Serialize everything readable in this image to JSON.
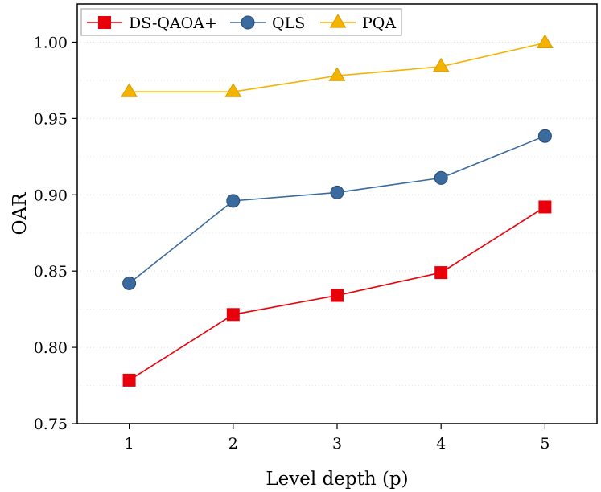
{
  "chart_data": {
    "type": "line",
    "title": "",
    "xlabel": "Level depth (p)",
    "ylabel": "OAR",
    "x": [
      1,
      2,
      3,
      4,
      5
    ],
    "xticks": [
      "1",
      "2",
      "3",
      "4",
      "5"
    ],
    "yticks": [
      "0.75",
      "0.80",
      "0.85",
      "0.90",
      "0.95",
      "1.00"
    ],
    "ylim": [
      0.75,
      1.025
    ],
    "xlim": [
      0.5,
      5.5
    ],
    "grid": "horizontal-dotted",
    "legend_position": "top-left",
    "series": [
      {
        "name": "DS-QAOA+",
        "color": "#e8000b",
        "marker": "square",
        "values": [
          0.7785,
          0.8215,
          0.834,
          0.849,
          0.892
        ]
      },
      {
        "name": "QLS",
        "color": "#3a6a9e",
        "marker": "circle",
        "values": [
          0.842,
          0.896,
          0.9015,
          0.911,
          0.9385
        ]
      },
      {
        "name": "PQA",
        "color": "#f5b301",
        "marker": "triangle",
        "values": [
          0.9675,
          0.9675,
          0.978,
          0.984,
          0.9995
        ]
      }
    ]
  }
}
